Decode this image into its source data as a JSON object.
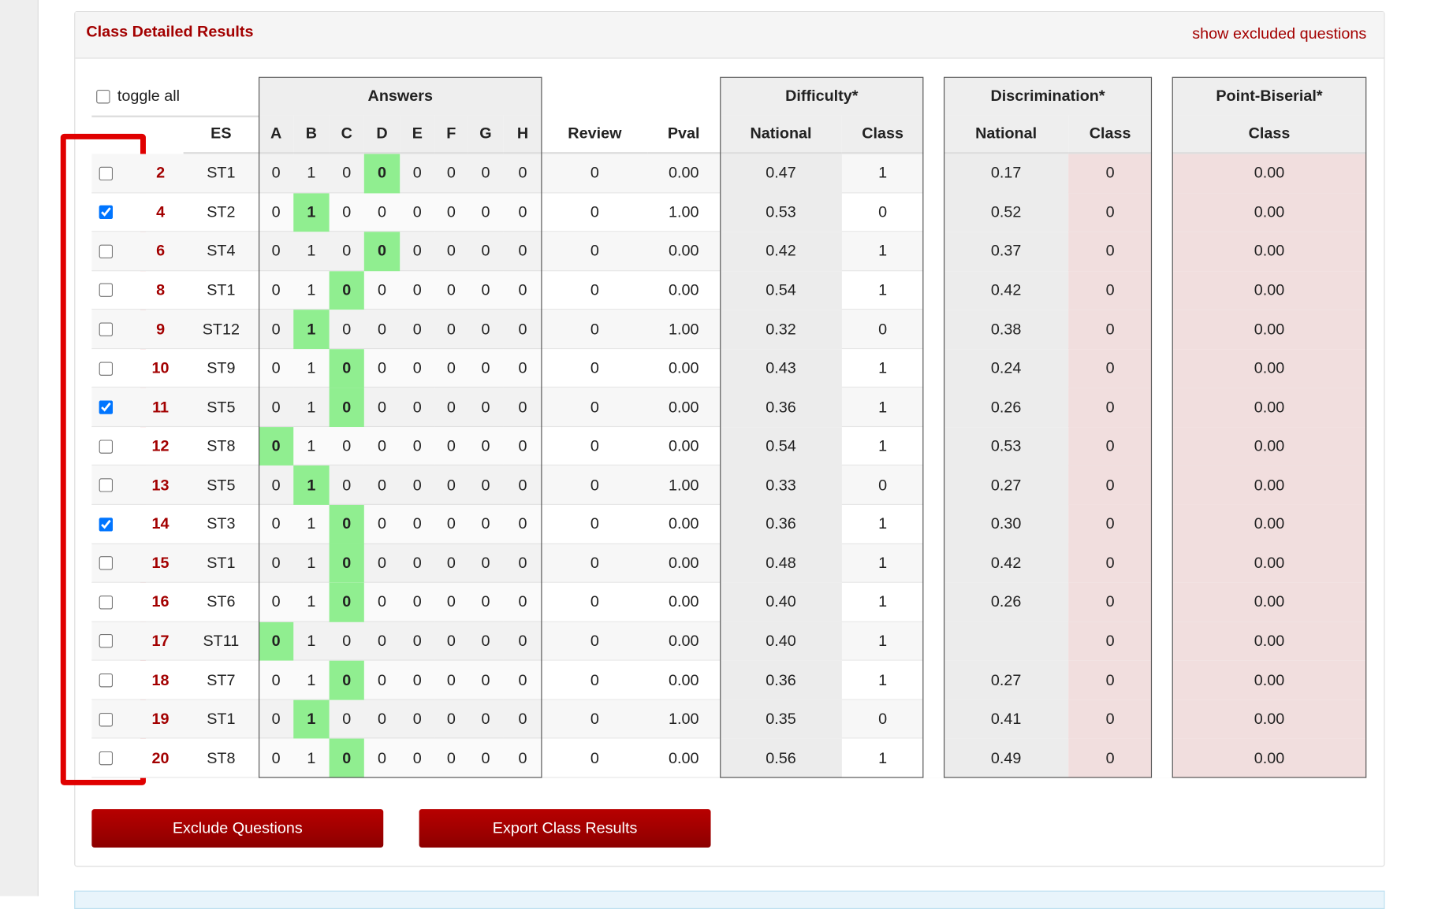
{
  "header": {
    "title": "Class Detailed Results",
    "link": "show excluded questions",
    "toggle": "toggle all"
  },
  "groups": [
    "Answers",
    "Difficulty*",
    "Discrimination*",
    "Point-Biserial*"
  ],
  "columns": [
    "ES",
    "A",
    "B",
    "C",
    "D",
    "E",
    "F",
    "G",
    "H",
    "Review",
    "Pval",
    "National",
    "Class",
    "National",
    "Class",
    "Class"
  ],
  "rows": [
    {
      "checked": false,
      "q": "2",
      "es": "ST1",
      "answers": [
        "0",
        "1",
        "0",
        "0",
        "0",
        "0",
        "0",
        "0"
      ],
      "key": 3,
      "review": "0",
      "pval": "0.00",
      "diff_national": "0.47",
      "diff_class": "1",
      "disc_national": "0.17",
      "disc_class": "0",
      "pb_class": "0.00"
    },
    {
      "checked": true,
      "q": "4",
      "es": "ST2",
      "answers": [
        "0",
        "1",
        "0",
        "0",
        "0",
        "0",
        "0",
        "0"
      ],
      "key": 1,
      "review": "0",
      "pval": "1.00",
      "diff_national": "0.53",
      "diff_class": "0",
      "disc_national": "0.52",
      "disc_class": "0",
      "pb_class": "0.00"
    },
    {
      "checked": false,
      "q": "6",
      "es": "ST4",
      "answers": [
        "0",
        "1",
        "0",
        "0",
        "0",
        "0",
        "0",
        "0"
      ],
      "key": 3,
      "review": "0",
      "pval": "0.00",
      "diff_national": "0.42",
      "diff_class": "1",
      "disc_national": "0.37",
      "disc_class": "0",
      "pb_class": "0.00"
    },
    {
      "checked": false,
      "q": "8",
      "es": "ST1",
      "answers": [
        "0",
        "1",
        "0",
        "0",
        "0",
        "0",
        "0",
        "0"
      ],
      "key": 2,
      "review": "0",
      "pval": "0.00",
      "diff_national": "0.54",
      "diff_class": "1",
      "disc_national": "0.42",
      "disc_class": "0",
      "pb_class": "0.00"
    },
    {
      "checked": false,
      "q": "9",
      "es": "ST12",
      "answers": [
        "0",
        "1",
        "0",
        "0",
        "0",
        "0",
        "0",
        "0"
      ],
      "key": 1,
      "review": "0",
      "pval": "1.00",
      "diff_national": "0.32",
      "diff_class": "0",
      "disc_national": "0.38",
      "disc_class": "0",
      "pb_class": "0.00"
    },
    {
      "checked": false,
      "q": "10",
      "es": "ST9",
      "answers": [
        "0",
        "1",
        "0",
        "0",
        "0",
        "0",
        "0",
        "0"
      ],
      "key": 2,
      "review": "0",
      "pval": "0.00",
      "diff_national": "0.43",
      "diff_class": "1",
      "disc_national": "0.24",
      "disc_class": "0",
      "pb_class": "0.00"
    },
    {
      "checked": true,
      "q": "11",
      "es": "ST5",
      "answers": [
        "0",
        "1",
        "0",
        "0",
        "0",
        "0",
        "0",
        "0"
      ],
      "key": 2,
      "review": "0",
      "pval": "0.00",
      "diff_national": "0.36",
      "diff_class": "1",
      "disc_national": "0.26",
      "disc_class": "0",
      "pb_class": "0.00"
    },
    {
      "checked": false,
      "q": "12",
      "es": "ST8",
      "answers": [
        "0",
        "1",
        "0",
        "0",
        "0",
        "0",
        "0",
        "0"
      ],
      "key": 0,
      "review": "0",
      "pval": "0.00",
      "diff_national": "0.54",
      "diff_class": "1",
      "disc_national": "0.53",
      "disc_class": "0",
      "pb_class": "0.00"
    },
    {
      "checked": false,
      "q": "13",
      "es": "ST5",
      "answers": [
        "0",
        "1",
        "0",
        "0",
        "0",
        "0",
        "0",
        "0"
      ],
      "key": 1,
      "review": "0",
      "pval": "1.00",
      "diff_national": "0.33",
      "diff_class": "0",
      "disc_national": "0.27",
      "disc_class": "0",
      "pb_class": "0.00"
    },
    {
      "checked": true,
      "q": "14",
      "es": "ST3",
      "answers": [
        "0",
        "1",
        "0",
        "0",
        "0",
        "0",
        "0",
        "0"
      ],
      "key": 2,
      "review": "0",
      "pval": "0.00",
      "diff_national": "0.36",
      "diff_class": "1",
      "disc_national": "0.30",
      "disc_class": "0",
      "pb_class": "0.00"
    },
    {
      "checked": false,
      "q": "15",
      "es": "ST1",
      "answers": [
        "0",
        "1",
        "0",
        "0",
        "0",
        "0",
        "0",
        "0"
      ],
      "key": 2,
      "review": "0",
      "pval": "0.00",
      "diff_national": "0.48",
      "diff_class": "1",
      "disc_national": "0.42",
      "disc_class": "0",
      "pb_class": "0.00"
    },
    {
      "checked": false,
      "q": "16",
      "es": "ST6",
      "answers": [
        "0",
        "1",
        "0",
        "0",
        "0",
        "0",
        "0",
        "0"
      ],
      "key": 2,
      "review": "0",
      "pval": "0.00",
      "diff_national": "0.40",
      "diff_class": "1",
      "disc_national": "0.26",
      "disc_class": "0",
      "pb_class": "0.00"
    },
    {
      "checked": false,
      "q": "17",
      "es": "ST11",
      "answers": [
        "0",
        "1",
        "0",
        "0",
        "0",
        "0",
        "0",
        "0"
      ],
      "key": 0,
      "review": "0",
      "pval": "0.00",
      "diff_national": "0.40",
      "diff_class": "1",
      "disc_national": null,
      "disc_class": "0",
      "pb_class": "0.00"
    },
    {
      "checked": false,
      "q": "18",
      "es": "ST7",
      "answers": [
        "0",
        "1",
        "0",
        "0",
        "0",
        "0",
        "0",
        "0"
      ],
      "key": 2,
      "review": "0",
      "pval": "0.00",
      "diff_national": "0.36",
      "diff_class": "1",
      "disc_national": "0.27",
      "disc_class": "0",
      "pb_class": "0.00"
    },
    {
      "checked": false,
      "q": "19",
      "es": "ST1",
      "answers": [
        "0",
        "1",
        "0",
        "0",
        "0",
        "0",
        "0",
        "0"
      ],
      "key": 1,
      "review": "0",
      "pval": "1.00",
      "diff_national": "0.35",
      "diff_class": "0",
      "disc_national": "0.41",
      "disc_class": "0",
      "pb_class": "0.00"
    },
    {
      "checked": false,
      "q": "20",
      "es": "ST8",
      "answers": [
        "0",
        "1",
        "0",
        "0",
        "0",
        "0",
        "0",
        "0"
      ],
      "key": 2,
      "review": "0",
      "pval": "0.00",
      "diff_national": "0.56",
      "diff_class": "1",
      "disc_national": "0.49",
      "disc_class": "0",
      "pb_class": "0.00"
    }
  ],
  "buttons": [
    "Exclude Questions",
    "Export Class Results"
  ]
}
